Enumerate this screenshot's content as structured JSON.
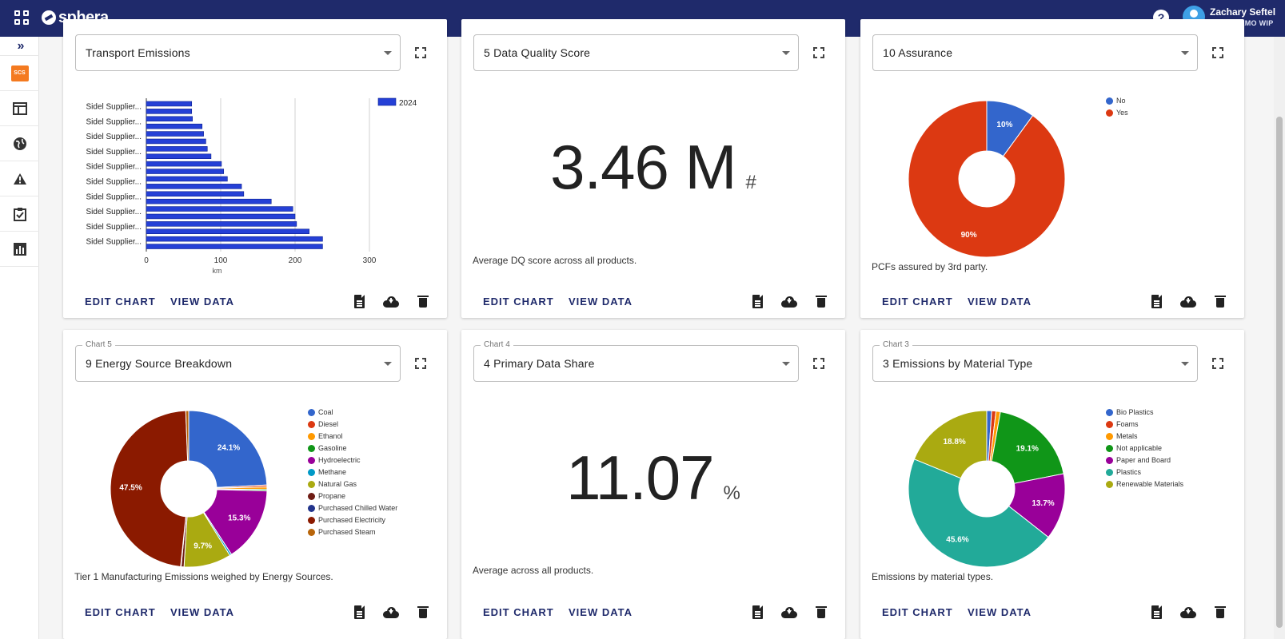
{
  "header": {
    "logo_text": "sphera",
    "help_label": "?",
    "user_name": "Zachary Seftel",
    "user_org": "SIDEL DEMO WIP"
  },
  "sidebar": {
    "expand_label": "»",
    "badge": "SCS"
  },
  "common": {
    "edit_chart": "EDIT CHART",
    "view_data": "VIEW DATA"
  },
  "cards": {
    "transport": {
      "selected": "Transport Emissions"
    },
    "dq": {
      "selected": "5 Data Quality Score",
      "value": "3.46 M",
      "unit": "#",
      "caption": "Average DQ score across all products."
    },
    "assurance": {
      "selected": "10 Assurance",
      "caption": "PCFs assured by 3rd party."
    },
    "energy": {
      "legend_label": "Chart 5",
      "selected": "9 Energy Source Breakdown",
      "caption": "Tier 1 Manufacturing Emissions weighed by Energy Sources."
    },
    "primary": {
      "legend_label": "Chart 4",
      "selected": "4 Primary Data Share",
      "value": "11.07",
      "unit": "%",
      "caption": "Average across all products."
    },
    "material": {
      "legend_label": "Chart 3",
      "selected": "3 Emissions by Material Type",
      "caption": "Emissions by material types."
    }
  },
  "chart_data": [
    {
      "id": "transport",
      "type": "bar",
      "orientation": "horizontal",
      "categories": [
        "Sidel Supplier...",
        "Sidel Supplier...",
        "Sidel Supplier...",
        "Sidel Supplier...",
        "Sidel Supplier...",
        "Sidel Supplier...",
        "Sidel Supplier...",
        "Sidel Supplier...",
        "Sidel Supplier...",
        "Sidel Supplier...",
        "Sidel Supplier...",
        "Sidel Supplier...",
        "Sidel Supplier...",
        "Sidel Supplier...",
        "Sidel Supplier...",
        "Sidel Supplier...",
        "Sidel Supplier...",
        "Sidel Supplier...",
        "Sidel Supplier...",
        "Sidel Supplier..."
      ],
      "category_labels_shown": [
        "Sidel Supplier...",
        "Sidel Supplier...",
        "Sidel Supplier...",
        "Sidel Supplier...",
        "Sidel Supplier...",
        "Sidel Supplier...",
        "Sidel Supplier...",
        "Sidel Supplier...",
        "Sidel Supplier...",
        "Sidel Supplier..."
      ],
      "series": [
        {
          "name": "2024",
          "color": "#2540d6",
          "values": [
            61,
            61,
            62,
            75,
            77,
            80,
            82,
            87,
            101,
            104,
            109,
            128,
            131,
            168,
            197,
            200,
            202,
            219,
            237,
            237
          ]
        }
      ],
      "xlabel": "km",
      "xlim": [
        0,
        300
      ],
      "xticks": [
        "0",
        "100",
        "200",
        "300"
      ],
      "legend_position": "top-right"
    },
    {
      "id": "assurance",
      "type": "pie",
      "donut": true,
      "slices": [
        {
          "label": "No",
          "value": 10,
          "color": "#3366cc",
          "text": "10%"
        },
        {
          "label": "Yes",
          "value": 90,
          "color": "#dc3912",
          "text": "90%"
        }
      ]
    },
    {
      "id": "energy",
      "type": "pie",
      "donut": true,
      "slices": [
        {
          "label": "Coal",
          "value": 24.1,
          "color": "#3366cc",
          "text": "24.1%"
        },
        {
          "label": "Diesel",
          "value": 0.4,
          "color": "#dc3912",
          "text": ""
        },
        {
          "label": "Ethanol",
          "value": 0.5,
          "color": "#ff9900",
          "text": ""
        },
        {
          "label": "Gasoline",
          "value": 0.3,
          "color": "#109618",
          "text": ""
        },
        {
          "label": "Hydroelectric",
          "value": 15.3,
          "color": "#990099",
          "text": "15.3%"
        },
        {
          "label": "Methane",
          "value": 0.4,
          "color": "#0099c6",
          "text": ""
        },
        {
          "label": "Natural Gas",
          "value": 9.7,
          "color": "#aaaa11",
          "text": "9.7%"
        },
        {
          "label": "Propane",
          "value": 0.6,
          "color": "#6e1c14",
          "text": ""
        },
        {
          "label": "Purchased Chilled Water",
          "value": 0.1,
          "color": "#22348c",
          "text": ""
        },
        {
          "label": "Purchased Electricity",
          "value": 47.5,
          "color": "#8b1a00",
          "text": "47.5%"
        },
        {
          "label": "Purchased Steam",
          "value": 0.6,
          "color": "#b8650a",
          "text": ""
        }
      ]
    },
    {
      "id": "material",
      "type": "pie",
      "donut": true,
      "slices": [
        {
          "label": "Bio Plastics",
          "value": 1.0,
          "color": "#3366cc",
          "text": ""
        },
        {
          "label": "Foams",
          "value": 0.9,
          "color": "#dc3912",
          "text": ""
        },
        {
          "label": "Metals",
          "value": 0.9,
          "color": "#ff9900",
          "text": ""
        },
        {
          "label": "Not applicable",
          "value": 19.1,
          "color": "#109618",
          "text": "19.1%"
        },
        {
          "label": "Paper and Board",
          "value": 13.7,
          "color": "#990099",
          "text": "13.7%"
        },
        {
          "label": "Plastics",
          "value": 45.6,
          "color": "#22aa99",
          "text": "45.6%"
        },
        {
          "label": "Renewable Materials",
          "value": 18.8,
          "color": "#aaaa11",
          "text": "18.8%"
        }
      ]
    }
  ]
}
